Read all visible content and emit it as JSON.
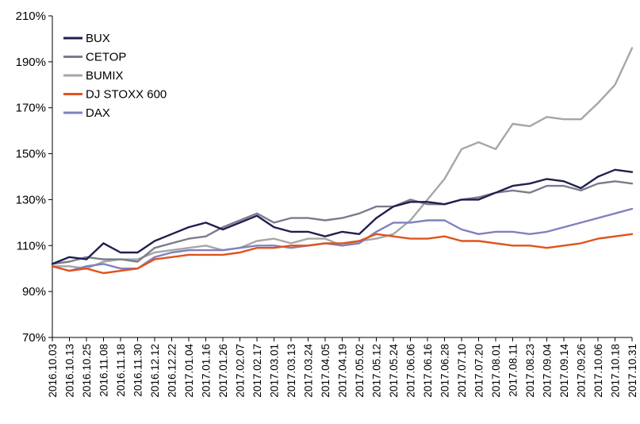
{
  "chart_data": {
    "type": "line",
    "title": "",
    "xlabel": "",
    "ylabel": "",
    "ylim": [
      0.7,
      2.1
    ],
    "y_ticks": [
      "70%",
      "90%",
      "110%",
      "130%",
      "150%",
      "170%",
      "190%",
      "210%"
    ],
    "grid": false,
    "legend_position": "top-left",
    "x_tick_labels": [
      "2016.10.03",
      "2016.10.13",
      "2016.10.25",
      "2016.11.08",
      "2016.11.18",
      "2016.11.30",
      "2016.12.12",
      "2016.12.22",
      "2017.01.04",
      "2017.01.16",
      "2017.01.26",
      "2017.02.07",
      "2017.02.17",
      "2017.03.01",
      "2017.03.13",
      "2017.03.24",
      "2017.04.05",
      "2017.04.19",
      "2017.05.02",
      "2017.05.12",
      "2017.05.24",
      "2017.06.06",
      "2017.06.16",
      "2017.06.28",
      "2017.07.10",
      "2017.07.20",
      "2017.08.01",
      "2017.08.11",
      "2017.08.23",
      "2017.09.04",
      "2017.09.14",
      "2017.09.26",
      "2017.10.06",
      "2017.10.18",
      "2017.10.31"
    ],
    "series": [
      {
        "name": "BUX",
        "color": "#1f1f4f",
        "values": [
          1.02,
          1.05,
          1.04,
          1.11,
          1.07,
          1.07,
          1.12,
          1.15,
          1.18,
          1.2,
          1.17,
          1.2,
          1.23,
          1.18,
          1.16,
          1.16,
          1.14,
          1.16,
          1.15,
          1.22,
          1.27,
          1.29,
          1.29,
          1.28,
          1.3,
          1.3,
          1.33,
          1.36,
          1.37,
          1.39,
          1.38,
          1.35,
          1.4,
          1.43,
          1.42
        ]
      },
      {
        "name": "CETOP",
        "color": "#7b7b8c",
        "values": [
          1.02,
          1.03,
          1.05,
          1.04,
          1.04,
          1.03,
          1.09,
          1.11,
          1.13,
          1.14,
          1.18,
          1.21,
          1.24,
          1.2,
          1.22,
          1.22,
          1.21,
          1.22,
          1.24,
          1.27,
          1.27,
          1.3,
          1.28,
          1.28,
          1.3,
          1.31,
          1.33,
          1.34,
          1.33,
          1.36,
          1.36,
          1.34,
          1.37,
          1.38,
          1.37
        ]
      },
      {
        "name": "BUMIX",
        "color": "#a6a6a6",
        "values": [
          1.01,
          1.01,
          1.0,
          1.03,
          1.04,
          1.04,
          1.07,
          1.08,
          1.09,
          1.1,
          1.08,
          1.09,
          1.12,
          1.13,
          1.11,
          1.13,
          1.13,
          1.1,
          1.12,
          1.13,
          1.15,
          1.21,
          1.3,
          1.39,
          1.52,
          1.55,
          1.52,
          1.63,
          1.62,
          1.66,
          1.65,
          1.65,
          1.72,
          1.8,
          1.96
        ]
      },
      {
        "name": "DJ STOXX 600",
        "color": "#e0531b",
        "values": [
          1.01,
          0.99,
          1.0,
          0.98,
          0.99,
          1.0,
          1.04,
          1.05,
          1.06,
          1.06,
          1.06,
          1.07,
          1.09,
          1.09,
          1.1,
          1.1,
          1.11,
          1.11,
          1.12,
          1.15,
          1.14,
          1.13,
          1.13,
          1.14,
          1.12,
          1.12,
          1.11,
          1.1,
          1.1,
          1.09,
          1.1,
          1.11,
          1.13,
          1.14,
          1.15
        ]
      },
      {
        "name": "DAX",
        "color": "#8080c0",
        "values": [
          1.01,
          0.99,
          1.01,
          1.02,
          1.0,
          1.0,
          1.05,
          1.07,
          1.08,
          1.08,
          1.08,
          1.09,
          1.1,
          1.1,
          1.09,
          1.1,
          1.11,
          1.1,
          1.11,
          1.16,
          1.2,
          1.2,
          1.21,
          1.21,
          1.17,
          1.15,
          1.16,
          1.16,
          1.15,
          1.16,
          1.18,
          1.2,
          1.22,
          1.24,
          1.26
        ]
      }
    ]
  }
}
